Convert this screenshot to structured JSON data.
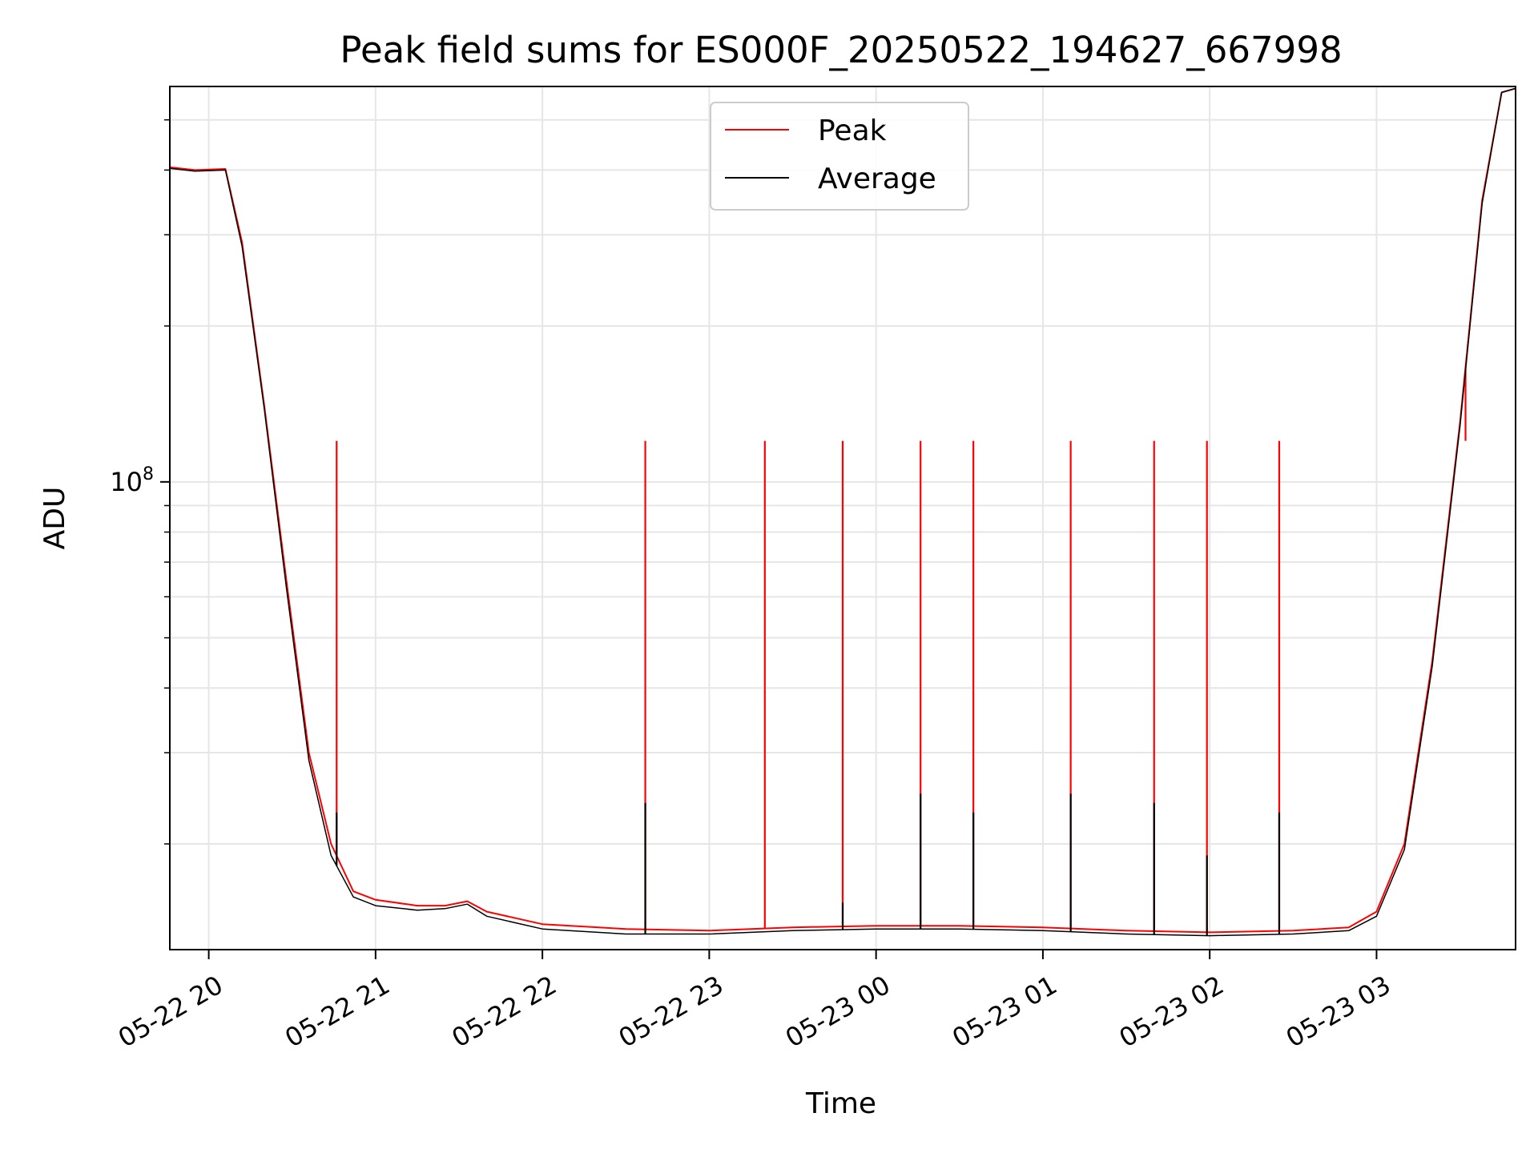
{
  "chart_data": {
    "type": "line",
    "title": "Peak field sums for ES000F_20250522_194627_667998",
    "xlabel": "Time",
    "ylabel": "ADU",
    "x_axis": "datetime",
    "y_scale": "log",
    "grid": true,
    "legend_position": "top-center",
    "xlim": [
      "2025-05-22 19:46",
      "2025-05-23 03:50"
    ],
    "ylim": [
      12500000,
      580000000
    ],
    "x_ticks": [
      {
        "label": "05-22 20",
        "time": "2025-05-22 20:00"
      },
      {
        "label": "05-22 21",
        "time": "2025-05-22 21:00"
      },
      {
        "label": "05-22 22",
        "time": "2025-05-22 22:00"
      },
      {
        "label": "05-22 23",
        "time": "2025-05-22 23:00"
      },
      {
        "label": "05-23 00",
        "time": "2025-05-23 00:00"
      },
      {
        "label": "05-23 01",
        "time": "2025-05-23 01:00"
      },
      {
        "label": "05-23 02",
        "time": "2025-05-23 02:00"
      },
      {
        "label": "05-23 03",
        "time": "2025-05-23 03:00"
      }
    ],
    "y_ticks": [
      {
        "base": "10",
        "exp": "8",
        "value": 100000000
      }
    ],
    "series": [
      {
        "name": "Peak",
        "color": "#ff0000",
        "points": [
          [
            "2025-05-22 19:46",
            405000000
          ],
          [
            "2025-05-22 19:55",
            400000000
          ],
          [
            "2025-05-22 20:06",
            402000000
          ],
          [
            "2025-05-22 20:12",
            290000000
          ],
          [
            "2025-05-22 20:20",
            140000000
          ],
          [
            "2025-05-22 20:28",
            64000000
          ],
          [
            "2025-05-22 20:36",
            30000000
          ],
          [
            "2025-05-22 20:44",
            20000000
          ],
          [
            "2025-05-22 20:52",
            16200000
          ],
          [
            "2025-05-22 21:00",
            15600000
          ],
          [
            "2025-05-22 21:15",
            15200000
          ],
          [
            "2025-05-22 21:25",
            15200000
          ],
          [
            "2025-05-22 21:33",
            15500000
          ],
          [
            "2025-05-22 21:40",
            14800000
          ],
          [
            "2025-05-22 22:00",
            14000000
          ],
          [
            "2025-05-22 22:30",
            13700000
          ],
          [
            "2025-05-22 23:00",
            13600000
          ],
          [
            "2025-05-22 23:30",
            13800000
          ],
          [
            "2025-05-23 00:00",
            13900000
          ],
          [
            "2025-05-23 00:30",
            13900000
          ],
          [
            "2025-05-23 01:00",
            13800000
          ],
          [
            "2025-05-23 01:30",
            13600000
          ],
          [
            "2025-05-23 02:00",
            13500000
          ],
          [
            "2025-05-23 02:30",
            13600000
          ],
          [
            "2025-05-23 02:50",
            13800000
          ],
          [
            "2025-05-23 03:00",
            14800000
          ],
          [
            "2025-05-23 03:10",
            20000000
          ],
          [
            "2025-05-23 03:20",
            45000000
          ],
          [
            "2025-05-23 03:30",
            130000000
          ],
          [
            "2025-05-23 03:38",
            350000000
          ],
          [
            "2025-05-23 03:45",
            565000000
          ],
          [
            "2025-05-23 03:50",
            575000000
          ]
        ],
        "spikes": [
          {
            "time": "2025-05-22 20:46",
            "value": 120000000
          },
          {
            "time": "2025-05-22 22:37",
            "value": 120000000
          },
          {
            "time": "2025-05-22 23:20",
            "value": 120000000
          },
          {
            "time": "2025-05-22 23:48",
            "value": 120000000
          },
          {
            "time": "2025-05-23 00:16",
            "value": 120000000
          },
          {
            "time": "2025-05-23 00:35",
            "value": 120000000
          },
          {
            "time": "2025-05-23 01:10",
            "value": 120000000
          },
          {
            "time": "2025-05-23 01:40",
            "value": 120000000
          },
          {
            "time": "2025-05-23 01:59",
            "value": 120000000
          },
          {
            "time": "2025-05-23 02:25",
            "value": 120000000
          },
          {
            "time": "2025-05-23 03:32",
            "value": 120000000
          }
        ]
      },
      {
        "name": "Average",
        "color": "#000000",
        "points": [
          [
            "2025-05-22 19:46",
            403000000
          ],
          [
            "2025-05-22 19:55",
            398000000
          ],
          [
            "2025-05-22 20:06",
            400000000
          ],
          [
            "2025-05-22 20:12",
            285000000
          ],
          [
            "2025-05-22 20:20",
            138000000
          ],
          [
            "2025-05-22 20:28",
            62000000
          ],
          [
            "2025-05-22 20:36",
            29000000
          ],
          [
            "2025-05-22 20:44",
            19000000
          ],
          [
            "2025-05-22 20:52",
            15800000
          ],
          [
            "2025-05-22 21:00",
            15200000
          ],
          [
            "2025-05-22 21:15",
            14900000
          ],
          [
            "2025-05-22 21:25",
            15000000
          ],
          [
            "2025-05-22 21:33",
            15300000
          ],
          [
            "2025-05-22 21:40",
            14500000
          ],
          [
            "2025-05-22 22:00",
            13700000
          ],
          [
            "2025-05-22 22:30",
            13400000
          ],
          [
            "2025-05-22 23:00",
            13400000
          ],
          [
            "2025-05-22 23:30",
            13600000
          ],
          [
            "2025-05-23 00:00",
            13700000
          ],
          [
            "2025-05-23 00:30",
            13700000
          ],
          [
            "2025-05-23 01:00",
            13600000
          ],
          [
            "2025-05-23 01:30",
            13400000
          ],
          [
            "2025-05-23 02:00",
            13300000
          ],
          [
            "2025-05-23 02:30",
            13400000
          ],
          [
            "2025-05-23 02:50",
            13600000
          ],
          [
            "2025-05-23 03:00",
            14500000
          ],
          [
            "2025-05-23 03:10",
            19500000
          ],
          [
            "2025-05-23 03:20",
            44000000
          ],
          [
            "2025-05-23 03:30",
            128000000
          ],
          [
            "2025-05-23 03:38",
            345000000
          ],
          [
            "2025-05-23 03:45",
            565000000
          ],
          [
            "2025-05-23 03:50",
            575000000
          ]
        ],
        "spikes": [
          {
            "time": "2025-05-22 20:46",
            "value": 23000000
          },
          {
            "time": "2025-05-22 22:37",
            "value": 24000000
          },
          {
            "time": "2025-05-22 23:48",
            "value": 15400000
          },
          {
            "time": "2025-05-23 00:16",
            "value": 25000000
          },
          {
            "time": "2025-05-23 00:35",
            "value": 23000000
          },
          {
            "time": "2025-05-23 01:10",
            "value": 25000000
          },
          {
            "time": "2025-05-23 01:40",
            "value": 24000000
          },
          {
            "time": "2025-05-23 01:59",
            "value": 19000000
          },
          {
            "time": "2025-05-23 02:25",
            "value": 23000000
          }
        ]
      }
    ]
  }
}
